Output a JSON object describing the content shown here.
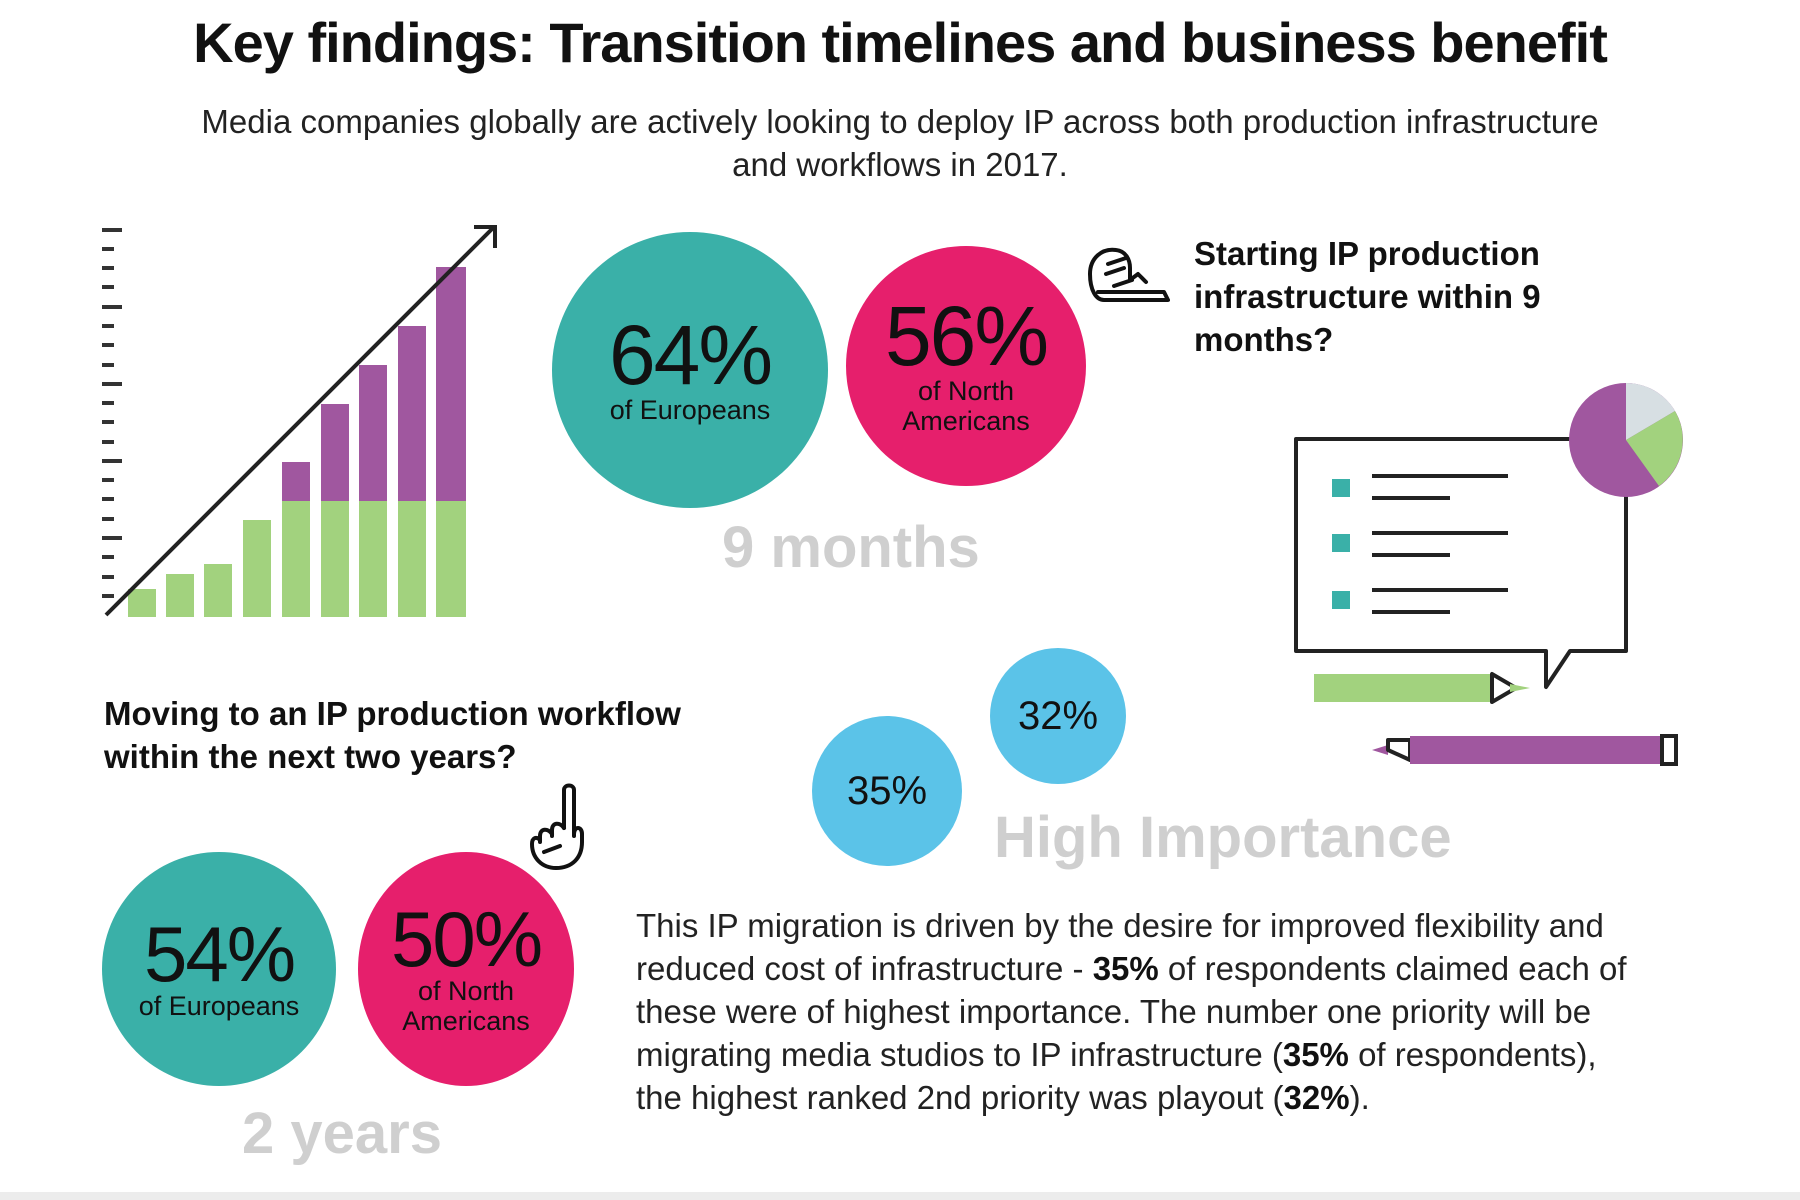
{
  "header": {
    "title": "Key findings: Transition timelines and business benefit",
    "subtitle": "Media companies globally are actively looking to deploy IP across both production infrastructure and workflows in 2017."
  },
  "nine_months": {
    "question": "Starting IP production infrastructure within 9 months?",
    "label": "9 months",
    "europe": {
      "value": "64%",
      "label": "of Europeans"
    },
    "north_america": {
      "value": "56%",
      "label": "of North Americans"
    }
  },
  "two_years": {
    "question": "Moving to an IP production workflow within the next two years?",
    "label": "2 years",
    "europe": {
      "value": "54%",
      "label": "of Europeans"
    },
    "north_america": {
      "value": "50%",
      "label": "of North Americans"
    }
  },
  "importance": {
    "label": "High Importance",
    "values": [
      "35%",
      "32%"
    ]
  },
  "body": {
    "part1": "This IP migration is driven by the desire for improved flexibility and reduced cost of infrastructure - ",
    "bold1": "35%",
    "part2": " of respondents claimed each of these were of highest importance. The number one priority will be migrating media studios to IP infrastructure (",
    "bold2": "35%",
    "part3": " of respondents), the highest ranked 2nd priority was playout (",
    "bold3": "32%",
    "part4": ")."
  },
  "colors": {
    "teal": "#3ab0a8",
    "pink": "#e61f6c",
    "blue": "#5bc3e8",
    "green": "#a2d27e",
    "purple": "#a0579f",
    "gray_text": "#cfcfcf"
  },
  "icons": {
    "growth_chart": "bar-chart-growth-icon",
    "hand_on_desk": "hand-icon",
    "pointing_hand": "pointing-hand-icon",
    "document": "speech-bubble-checklist-icon",
    "pie": "pie-chart-icon",
    "pencil": "pencil-icon"
  }
}
